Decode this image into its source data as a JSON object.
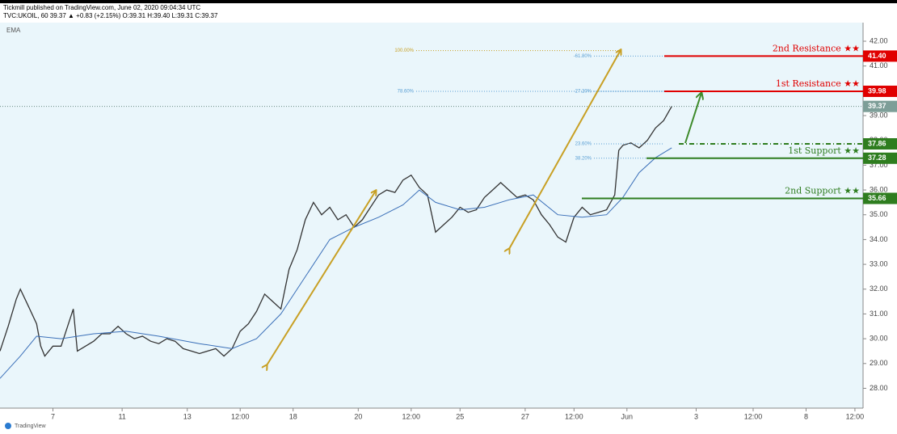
{
  "header": {
    "line1": "Tickmill published on TradingView.com, June 02, 2020 09:04:34 UTC",
    "line2": "TVC:UKOIL, 60  39.37  ▲ +0.83 (+2.15%)  O:39.31  H:39.40  L:39.31  C:39.37",
    "indicator": "EMA",
    "footer": "TradingView"
  },
  "chart_data": {
    "type": "line",
    "ylim": [
      27.2,
      42.75
    ],
    "xlim": [
      0,
      212
    ],
    "yticks": [
      {
        "value": 28,
        "label": "28.00"
      },
      {
        "value": 29,
        "label": "29.00"
      },
      {
        "value": 30,
        "label": "30.00"
      },
      {
        "value": 31,
        "label": "31.00"
      },
      {
        "value": 32,
        "label": "32.00"
      },
      {
        "value": 33,
        "label": "33.00"
      },
      {
        "value": 34,
        "label": "34.00"
      },
      {
        "value": 35,
        "label": "35.00"
      },
      {
        "value": 36,
        "label": "36.00"
      },
      {
        "value": 37,
        "label": "37.00"
      },
      {
        "value": 38,
        "label": "38.00"
      },
      {
        "value": 39,
        "label": "39.00"
      },
      {
        "value": 40,
        "label": "40.00"
      },
      {
        "value": 41,
        "label": "41.00"
      },
      {
        "value": 42,
        "label": "42.00"
      }
    ],
    "xticks": [
      {
        "value": 13,
        "label": "7"
      },
      {
        "value": 30,
        "label": "11"
      },
      {
        "value": 46,
        "label": "13"
      },
      {
        "value": 59,
        "label": "12:00"
      },
      {
        "value": 72,
        "label": "18"
      },
      {
        "value": 88,
        "label": "20"
      },
      {
        "value": 101,
        "label": "12:00"
      },
      {
        "value": 113,
        "label": "25"
      },
      {
        "value": 129,
        "label": "27"
      },
      {
        "value": 141,
        "label": "12:00"
      },
      {
        "value": 154,
        "label": "Jun"
      },
      {
        "value": 171,
        "label": "3"
      },
      {
        "value": 185,
        "label": "12:00"
      },
      {
        "value": 198,
        "label": "8"
      },
      {
        "value": 210,
        "label": "12:00"
      }
    ],
    "series": [
      {
        "name": "UKOIL",
        "color": "#333333",
        "x": [
          0,
          2,
          4,
          5,
          7,
          9,
          10,
          11,
          13,
          15,
          18,
          19,
          21,
          23,
          25,
          27,
          29,
          31,
          33,
          35,
          37,
          39,
          41,
          43,
          45,
          47,
          49,
          51,
          53,
          55,
          57,
          59,
          61,
          63,
          65,
          67,
          69,
          71,
          73,
          75,
          77,
          79,
          81,
          83,
          85,
          87,
          89,
          91,
          93,
          95,
          97,
          99,
          101,
          103,
          105,
          107,
          109,
          111,
          113,
          115,
          117,
          119,
          121,
          123,
          125,
          127,
          129,
          131,
          133,
          135,
          137,
          139,
          141,
          143,
          145,
          147,
          149,
          151,
          152,
          153,
          155,
          157,
          159,
          161,
          163,
          165
        ],
        "values": [
          29.5,
          30.5,
          31.6,
          32.0,
          31.3,
          30.6,
          29.7,
          29.3,
          29.7,
          29.7,
          31.2,
          29.5,
          29.7,
          29.9,
          30.2,
          30.2,
          30.5,
          30.2,
          30.0,
          30.1,
          29.9,
          29.8,
          30.0,
          29.9,
          29.6,
          29.5,
          29.4,
          29.5,
          29.6,
          29.3,
          29.6,
          30.3,
          30.6,
          31.1,
          31.8,
          31.5,
          31.2,
          32.8,
          33.6,
          34.8,
          35.5,
          35.0,
          35.3,
          34.8,
          35.0,
          34.5,
          34.8,
          35.3,
          35.8,
          36.0,
          35.9,
          36.4,
          36.6,
          36.1,
          35.8,
          34.3,
          34.6,
          34.9,
          35.3,
          35.1,
          35.2,
          35.7,
          36.0,
          36.3,
          36.0,
          35.7,
          35.8,
          35.6,
          35.0,
          34.6,
          34.1,
          33.9,
          34.9,
          35.3,
          35.0,
          35.1,
          35.2,
          35.8,
          37.6,
          37.8,
          37.9,
          37.7,
          38.0,
          38.5,
          38.8,
          39.37
        ]
      },
      {
        "name": "EMA",
        "color": "#3a6fb8",
        "x": [
          0,
          5,
          9,
          15,
          23,
          31,
          39,
          49,
          57,
          63,
          69,
          75,
          81,
          87,
          93,
          99,
          103,
          107,
          113,
          119,
          125,
          131,
          137,
          143,
          149,
          153,
          157,
          161,
          165
        ],
        "values": [
          28.4,
          29.3,
          30.1,
          30.0,
          30.2,
          30.3,
          30.1,
          29.8,
          29.6,
          30.0,
          31.0,
          32.5,
          34.0,
          34.5,
          34.9,
          35.4,
          36.0,
          35.5,
          35.2,
          35.3,
          35.6,
          35.8,
          35.0,
          34.9,
          35.0,
          35.7,
          36.7,
          37.3,
          37.7
        ]
      }
    ],
    "last_price": 39.37,
    "levels": [
      {
        "value": 41.4,
        "label": "41.40",
        "name": "2nd Resistance ★★",
        "color": "#e00000"
      },
      {
        "value": 39.98,
        "label": "39.98",
        "name": "1st Resistance ★★",
        "color": "#e00000"
      },
      {
        "value": 37.86,
        "label": "37.86",
        "color": "#2e7d1f"
      },
      {
        "value": 37.28,
        "label": "37.28",
        "name": "1st Support ★★",
        "color": "#2e7d1f"
      },
      {
        "value": 35.66,
        "label": "35.66",
        "name": "2nd Support ★★",
        "color": "#2e7d1f"
      }
    ],
    "fib": [
      {
        "value": 41.62,
        "label": "100.00%",
        "color": "#c8a024"
      },
      {
        "value": 41.4,
        "label": "-61.80%",
        "color": "#5a9fd4"
      },
      {
        "value": 39.98,
        "label": "78.60%",
        "color": "#5a9fd4"
      },
      {
        "value": 39.98,
        "label": "-27.20%",
        "color": "#5a9fd4"
      },
      {
        "value": 37.86,
        "label": "23.60%",
        "color": "#5a9fd4"
      },
      {
        "value": 37.28,
        "label": "38.20%",
        "color": "#5a9fd4"
      }
    ]
  }
}
